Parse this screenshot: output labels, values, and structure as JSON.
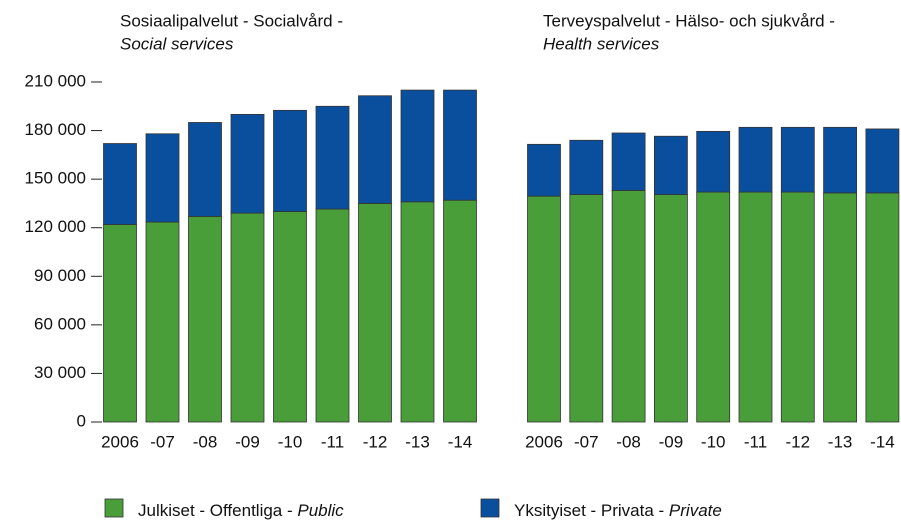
{
  "chart_data": {
    "type": "bar",
    "stacked": true,
    "ylim": [
      0,
      210000
    ],
    "yticks": [
      0,
      {
        "value": 30000,
        "label": "30 000"
      },
      {
        "value": 60000,
        "label": "60 000"
      },
      {
        "value": 90000,
        "label": "90 000"
      },
      {
        "value": 120000,
        "label": "120 000"
      },
      {
        "value": 150000,
        "label": "150 000"
      },
      {
        "value": 180000,
        "label": "180 000"
      },
      {
        "value": 210000,
        "label": "210 000"
      }
    ],
    "series": [
      {
        "name": "Julkiset - Offentliga - Public",
        "color": "#4a9e3a"
      },
      {
        "name": "Yksityiset - Privata - Private",
        "color": "#0a4f9e"
      }
    ],
    "panels": [
      {
        "title": "Sosiaalipalvelut - Socialvård -",
        "subtitle": "Social services",
        "categories": [
          "2006",
          "-07",
          "-08",
          "-09",
          "-10",
          "-11",
          "-12",
          "-13",
          "-14"
        ],
        "values": [
          [
            122000,
            123500,
            127000,
            129000,
            130000,
            131500,
            135000,
            136000,
            137000
          ],
          [
            50000,
            54500,
            58000,
            61000,
            62500,
            63500,
            66500,
            69000,
            68000
          ]
        ]
      },
      {
        "title": "Terveyspalvelut - Hälso- och sjukvård -",
        "subtitle": "Health services",
        "categories": [
          "2006",
          "-07",
          "-08",
          "-09",
          "-10",
          "-11",
          "-12",
          "-13",
          "-14"
        ],
        "values": [
          [
            139500,
            140500,
            143000,
            140500,
            142000,
            142000,
            142000,
            141500,
            141500
          ],
          [
            32000,
            33500,
            35500,
            36000,
            37500,
            40000,
            40000,
            40500,
            39500
          ]
        ]
      }
    ]
  }
}
